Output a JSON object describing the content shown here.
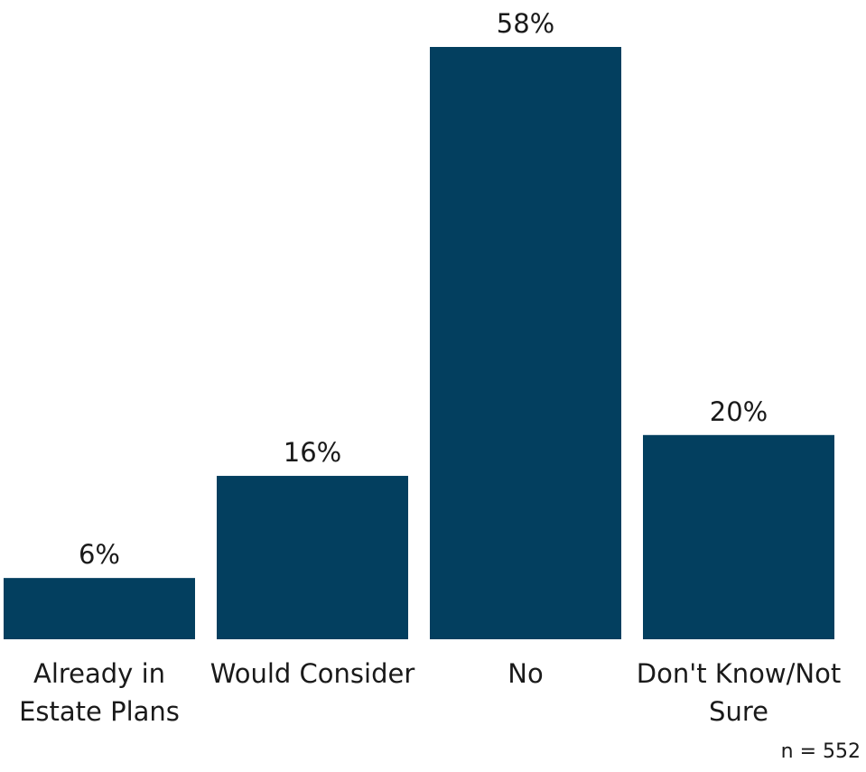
{
  "chart_data": {
    "type": "bar",
    "categories": [
      [
        "Already in",
        "Estate Plans"
      ],
      [
        "Would Consider"
      ],
      [
        "No"
      ],
      [
        "Don't Know/Not",
        "Sure"
      ]
    ],
    "values": [
      6,
      16,
      58,
      20
    ],
    "value_labels": [
      "6%",
      "16%",
      "58%",
      "20%"
    ],
    "unit": "%",
    "ylim": [
      0,
      58
    ],
    "grid": false,
    "legend": "none",
    "bar_color": "#033f5f"
  },
  "note": "n = 552"
}
